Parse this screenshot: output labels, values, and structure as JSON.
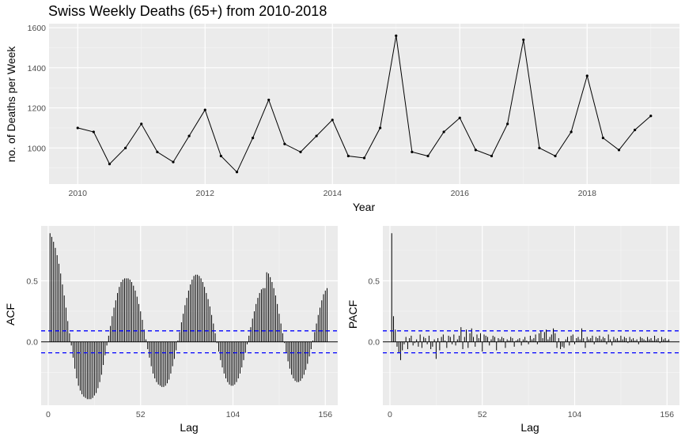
{
  "chart_data": [
    {
      "type": "line",
      "title": "Swiss Weekly Deaths (65+) from 2010-2018",
      "xlabel": "Year",
      "ylabel": "no. of Deaths per Week",
      "xlim": [
        2009.55,
        2019.45
      ],
      "ylim": [
        820,
        1620
      ],
      "xticks": [
        2010,
        2012,
        2014,
        2016,
        2018
      ],
      "xtick_labels": [
        "2010",
        "2012",
        "2014",
        "2016",
        "2018"
      ],
      "yticks": [
        1000,
        1200,
        1400,
        1600
      ],
      "ytick_labels": [
        "1000",
        "1200",
        "1400",
        "1600"
      ],
      "grid": true,
      "series": [
        {
          "x": [
            2010.0,
            2010.25,
            2010.5,
            2010.75,
            2011.0,
            2011.25,
            2011.5,
            2011.75,
            2012.0,
            2012.25,
            2012.5,
            2012.75,
            2013.0,
            2013.25,
            2013.5,
            2013.75,
            2014.0,
            2014.25,
            2014.5,
            2014.75,
            2015.0,
            2015.25,
            2015.5,
            2015.75,
            2016.0,
            2016.25,
            2016.5,
            2016.75,
            2017.0,
            2017.25,
            2017.5,
            2017.75,
            2018.0,
            2018.25,
            2018.5,
            2018.75,
            2019.0
          ],
          "y": [
            1100,
            1080,
            920,
            1000,
            1120,
            980,
            930,
            1060,
            1190,
            960,
            880,
            1050,
            1240,
            1020,
            980,
            1060,
            1140,
            960,
            950,
            1100,
            1560,
            980,
            960,
            1080,
            1150,
            990,
            960,
            1120,
            1540,
            1000,
            960,
            1080,
            1360,
            1050,
            990,
            1090,
            1160
          ]
        }
      ]
    },
    {
      "type": "bar",
      "xlabel": "Lag",
      "ylabel": "ACF",
      "xlim": [
        -4,
        163
      ],
      "ylim": [
        -0.52,
        0.95
      ],
      "xticks": [
        0,
        52,
        104,
        156
      ],
      "xtick_labels": [
        "0",
        "52",
        "104",
        "156"
      ],
      "yticks": [
        0.0,
        0.5
      ],
      "ytick_labels": [
        "0.0",
        "0.5"
      ],
      "confidence_limit": 0.09,
      "lags": [
        1,
        2,
        3,
        4,
        5,
        6,
        7,
        8,
        9,
        10,
        11,
        12,
        13,
        14,
        15,
        16,
        17,
        18,
        19,
        20,
        21,
        22,
        23,
        24,
        25,
        26,
        27,
        28,
        29,
        30,
        31,
        32,
        33,
        34,
        35,
        36,
        37,
        38,
        39,
        40,
        41,
        42,
        43,
        44,
        45,
        46,
        47,
        48,
        49,
        50,
        51,
        52,
        53,
        54,
        55,
        56,
        57,
        58,
        59,
        60,
        61,
        62,
        63,
        64,
        65,
        66,
        67,
        68,
        69,
        70,
        71,
        72,
        73,
        74,
        75,
        76,
        77,
        78,
        79,
        80,
        81,
        82,
        83,
        84,
        85,
        86,
        87,
        88,
        89,
        90,
        91,
        92,
        93,
        94,
        95,
        96,
        97,
        98,
        99,
        100,
        101,
        102,
        103,
        104,
        105,
        106,
        107,
        108,
        109,
        110,
        111,
        112,
        113,
        114,
        115,
        116,
        117,
        118,
        119,
        120,
        121,
        122,
        123,
        124,
        125,
        126,
        127,
        128,
        129,
        130,
        131,
        132,
        133,
        134,
        135,
        136,
        137,
        138,
        139,
        140,
        141,
        142,
        143,
        144,
        145,
        146,
        147,
        148,
        149,
        150,
        151,
        152,
        153,
        154,
        155,
        156,
        157
      ],
      "values": [
        0.89,
        0.86,
        0.82,
        0.77,
        0.71,
        0.64,
        0.56,
        0.47,
        0.38,
        0.28,
        0.17,
        0.07,
        -0.03,
        -0.13,
        -0.22,
        -0.3,
        -0.36,
        -0.4,
        -0.43,
        -0.45,
        -0.46,
        -0.47,
        -0.47,
        -0.47,
        -0.46,
        -0.44,
        -0.42,
        -0.38,
        -0.33,
        -0.27,
        -0.19,
        -0.11,
        -0.03,
        0.05,
        0.13,
        0.21,
        0.28,
        0.34,
        0.4,
        0.45,
        0.49,
        0.51,
        0.52,
        0.52,
        0.52,
        0.51,
        0.49,
        0.46,
        0.42,
        0.37,
        0.31,
        0.25,
        0.18,
        0.1,
        0.02,
        -0.06,
        -0.13,
        -0.2,
        -0.26,
        -0.3,
        -0.33,
        -0.35,
        -0.36,
        -0.37,
        -0.37,
        -0.36,
        -0.34,
        -0.31,
        -0.26,
        -0.2,
        -0.14,
        -0.07,
        0.01,
        0.08,
        0.16,
        0.23,
        0.3,
        0.36,
        0.42,
        0.47,
        0.51,
        0.54,
        0.55,
        0.55,
        0.54,
        0.52,
        0.49,
        0.45,
        0.4,
        0.35,
        0.29,
        0.22,
        0.15,
        0.07,
        -0.01,
        -0.08,
        -0.15,
        -0.21,
        -0.26,
        -0.3,
        -0.33,
        -0.35,
        -0.36,
        -0.36,
        -0.35,
        -0.33,
        -0.3,
        -0.26,
        -0.21,
        -0.15,
        -0.09,
        -0.02,
        0.05,
        0.12,
        0.19,
        0.25,
        0.31,
        0.36,
        0.4,
        0.43,
        0.44,
        0.44,
        0.57,
        0.56,
        0.53,
        0.49,
        0.44,
        0.38,
        0.31,
        0.23,
        0.15,
        0.07,
        -0.01,
        -0.09,
        -0.16,
        -0.22,
        -0.27,
        -0.3,
        -0.32,
        -0.33,
        -0.33,
        -0.32,
        -0.3,
        -0.27,
        -0.23,
        -0.18,
        -0.12,
        -0.06,
        0.01,
        0.08,
        0.15,
        0.22,
        0.28,
        0.34,
        0.39,
        0.42,
        0.44
      ]
    },
    {
      "type": "bar",
      "xlabel": "Lag",
      "ylabel": "PACF",
      "xlim": [
        -4,
        163
      ],
      "ylim": [
        -0.52,
        0.95
      ],
      "xticks": [
        0,
        52,
        104,
        156
      ],
      "xtick_labels": [
        "0",
        "52",
        "104",
        "156"
      ],
      "yticks": [
        0.0,
        0.5
      ],
      "ytick_labels": [
        "0.0",
        "0.5"
      ],
      "confidence_limit": 0.09,
      "lags": [
        1,
        2,
        3,
        4,
        5,
        6,
        7,
        8,
        9,
        10,
        11,
        12,
        13,
        14,
        15,
        16,
        17,
        18,
        19,
        20,
        21,
        22,
        23,
        24,
        25,
        26,
        27,
        28,
        29,
        30,
        31,
        32,
        33,
        34,
        35,
        36,
        37,
        38,
        39,
        40,
        41,
        42,
        43,
        44,
        45,
        46,
        47,
        48,
        49,
        50,
        51,
        52,
        53,
        54,
        55,
        56,
        57,
        58,
        59,
        60,
        61,
        62,
        63,
        64,
        65,
        66,
        67,
        68,
        69,
        70,
        71,
        72,
        73,
        74,
        75,
        76,
        77,
        78,
        79,
        80,
        81,
        82,
        83,
        84,
        85,
        86,
        87,
        88,
        89,
        90,
        91,
        92,
        93,
        94,
        95,
        96,
        97,
        98,
        99,
        100,
        101,
        102,
        103,
        104,
        105,
        106,
        107,
        108,
        109,
        110,
        111,
        112,
        113,
        114,
        115,
        116,
        117,
        118,
        119,
        120,
        121,
        122,
        123,
        124,
        125,
        126,
        127,
        128,
        129,
        130,
        131,
        132,
        133,
        134,
        135,
        136,
        137,
        138,
        139,
        140,
        141,
        142,
        143,
        144,
        145,
        146,
        147,
        148,
        149,
        150,
        151,
        152,
        153,
        154,
        155,
        156,
        157
      ],
      "values": [
        0.89,
        0.21,
        0.1,
        -0.04,
        -0.09,
        -0.15,
        -0.07,
        -0.02,
        0.04,
        -0.06,
        0.03,
        0.05,
        -0.03,
        -0.01,
        0.02,
        -0.04,
        0.06,
        -0.05,
        0.04,
        0.03,
        -0.02,
        0.05,
        -0.06,
        -0.04,
        0.02,
        -0.14,
        0.03,
        -0.07,
        0.04,
        0.06,
        0.01,
        -0.05,
        0.05,
        0.04,
        -0.02,
        0.06,
        -0.03,
        0.02,
        0.05,
        0.12,
        -0.06,
        0.04,
        0.1,
        -0.05,
        0.07,
        0.11,
        0.04,
        -0.04,
        0.06,
        0.03,
        0.07,
        -0.08,
        0.06,
        0.05,
        0.04,
        -0.03,
        0.02,
        0.05,
        0.04,
        -0.07,
        0.03,
        0.02,
        0.04,
        0.03,
        -0.05,
        0.02,
        0.01,
        0.04,
        0.03,
        -0.04,
        0.01,
        0.02,
        0.03,
        -0.03,
        0.02,
        0.04,
        0.01,
        -0.02,
        0.05,
        0.02,
        0.03,
        0.06,
        -0.02,
        0.07,
        0.09,
        0.03,
        0.08,
        0.1,
        0.02,
        0.04,
        0.06,
        0.11,
        0.07,
        -0.05,
        0.03,
        -0.06,
        -0.04,
        -0.05,
        0.02,
        0.04,
        -0.03,
        0.05,
        0.06,
        -0.02,
        0.03,
        0.04,
        0.02,
        0.11,
        0.03,
        -0.05,
        0.04,
        0.02,
        0.03,
        0.05,
        -0.02,
        0.04,
        0.03,
        0.05,
        0.02,
        0.04,
        0.03,
        -0.02,
        0.06,
        0.02,
        -0.03,
        0.04,
        0.02,
        0.03,
        0.01,
        0.05,
        0.02,
        0.04,
        0.03,
        -0.01,
        0.04,
        0.02,
        0.03,
        0.01,
        0.02,
        -0.02,
        0.04,
        0.03,
        0.02,
        0.01,
        0.04,
        0.02,
        0.03,
        0.01,
        0.05,
        0.02,
        0.03,
        -0.01,
        0.04,
        0.02,
        0.03,
        0.01,
        0.02
      ]
    }
  ]
}
